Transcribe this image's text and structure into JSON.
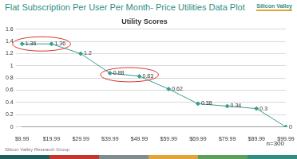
{
  "page": {
    "title": "Flat Subscription Per User Per Month- Price Utilities Data Plot",
    "logo": "Silicon Valley",
    "footer": "Silicon Valley Research Group"
  },
  "chart_data": {
    "type": "line",
    "title": "Utility Scores",
    "categories": [
      "$9.99",
      "$19.99",
      "$29.99",
      "$39.99",
      "$49.99",
      "$59.99",
      "$69.99",
      "$79.99",
      "$89.99",
      "$99.99"
    ],
    "values": [
      1.36,
      1.36,
      1.2,
      0.88,
      0.83,
      0.62,
      0.38,
      0.34,
      0.3,
      0
    ],
    "color": "#3a9e8f",
    "marker": "diamond",
    "ylim": [
      0,
      1.6
    ],
    "yticks": [
      0,
      0.2,
      0.4,
      0.6,
      0.8,
      1,
      1.2,
      1.4,
      1.6
    ],
    "grid": true,
    "data_labels": true,
    "annotations": [
      "n=300"
    ]
  }
}
